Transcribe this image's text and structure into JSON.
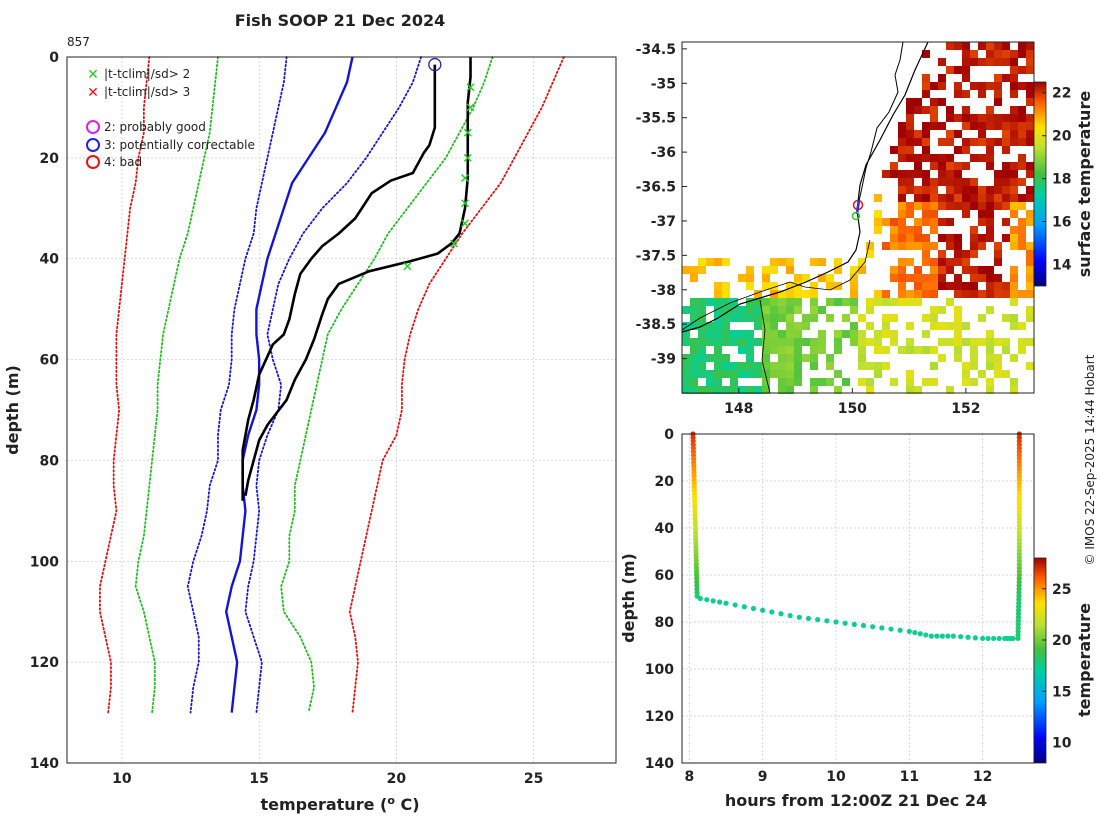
{
  "title": "Fish SOOP 21 Dec 2024",
  "profile_id": "857",
  "credit": "© IMOS 22-Sep-2025 14:44 Hobart",
  "legend": {
    "flag_items": [
      {
        "marker": "x",
        "color": "#22cc22",
        "label": "|t-tclim|/sd> 2"
      },
      {
        "marker": "x",
        "color": "#ee1111",
        "label": "|t-tclim|/sd> 3"
      }
    ],
    "qc_items": [
      {
        "marker": "o",
        "color": "#dd22dd",
        "label": "2: probably good"
      },
      {
        "marker": "o",
        "color": "#2222dd",
        "label": "3: potentially correctable"
      },
      {
        "marker": "o",
        "color": "#ee1111",
        "label": "4: bad"
      }
    ]
  },
  "chart_data": [
    {
      "type": "line",
      "name": "temperature-profile",
      "xlabel": "temperature (",
      "xlabel_sup": "o",
      "xlabel_tail": " C)",
      "ylabel": "depth (m)",
      "xlim": [
        8,
        28
      ],
      "ylim": [
        140,
        0
      ],
      "xticks": [
        10,
        15,
        20,
        25
      ],
      "yticks": [
        0,
        20,
        40,
        60,
        80,
        100,
        120,
        140
      ],
      "depth_levels": [
        0,
        5,
        10,
        15,
        20,
        25,
        30,
        35,
        40,
        45,
        50,
        55,
        60,
        65,
        70,
        75,
        80,
        85,
        90,
        95,
        100,
        105,
        110,
        115,
        120,
        125,
        130
      ],
      "climatology": [
        {
          "name": "clim-mean",
          "color": "#1515d0",
          "style": "solid",
          "values": [
            18.4,
            18.2,
            17.8,
            17.4,
            16.8,
            16.2,
            15.9,
            15.6,
            15.3,
            15.1,
            14.9,
            14.9,
            15.0,
            15.0,
            14.9,
            14.6,
            14.4,
            14.4,
            14.5,
            14.4,
            14.3,
            14.0,
            13.8,
            14.0,
            14.2,
            14.1,
            14.0
          ]
        },
        {
          "name": "clim-plus1sd",
          "color": "#1515d0",
          "style": "dotted",
          "values": [
            16.0,
            15.9,
            15.7,
            15.5,
            15.3,
            15.1,
            14.9,
            14.8,
            14.5,
            14.3,
            14.1,
            14.0,
            14.0,
            13.9,
            13.6,
            13.5,
            13.5,
            13.2,
            13.1,
            12.9,
            12.6,
            12.4,
            12.6,
            12.8,
            12.8,
            12.6,
            12.5
          ]
        },
        {
          "name": "clim-minus1sd",
          "color": "#1515d0",
          "style": "dotted",
          "values": [
            20.9,
            20.6,
            20.1,
            19.5,
            18.9,
            18.2,
            17.3,
            16.6,
            16.1,
            15.7,
            15.5,
            15.3,
            15.5,
            15.8,
            15.7,
            15.3,
            15.0,
            14.9,
            15.0,
            14.9,
            14.8,
            14.6,
            14.5,
            14.8,
            15.1,
            15.0,
            14.9
          ]
        },
        {
          "name": "clim-plus2sd",
          "color": "#22bb22",
          "style": "dotted",
          "values": [
            13.5,
            13.4,
            13.3,
            13.2,
            13.0,
            12.8,
            12.6,
            12.4,
            12.1,
            11.9,
            11.7,
            11.5,
            11.4,
            11.3,
            11.3,
            11.2,
            11.1,
            11.0,
            10.9,
            10.8,
            10.6,
            10.5,
            10.8,
            11.0,
            11.2,
            11.2,
            11.1
          ]
        },
        {
          "name": "clim-minus2sd",
          "color": "#22bb22",
          "style": "dotted",
          "values": [
            23.5,
            23.2,
            22.8,
            22.3,
            21.8,
            21.1,
            20.4,
            19.7,
            19.2,
            18.6,
            18.0,
            17.5,
            17.3,
            17.1,
            16.9,
            16.7,
            16.5,
            16.3,
            16.3,
            16.1,
            16.1,
            15.8,
            15.9,
            16.5,
            16.9,
            17.0,
            16.8
          ]
        },
        {
          "name": "clim-plus3sd",
          "color": "#dd1111",
          "style": "dotted",
          "values": [
            11.0,
            10.9,
            10.8,
            10.8,
            10.6,
            10.5,
            10.3,
            10.2,
            10.1,
            10.0,
            9.9,
            9.8,
            9.8,
            9.8,
            9.9,
            9.8,
            9.7,
            9.7,
            9.8,
            9.6,
            9.4,
            9.2,
            9.2,
            9.4,
            9.6,
            9.6,
            9.5
          ]
        },
        {
          "name": "clim-minus3sd",
          "color": "#dd1111",
          "style": "dotted",
          "values": [
            26.1,
            25.7,
            25.3,
            24.8,
            24.3,
            23.8,
            23.1,
            22.4,
            21.8,
            21.2,
            20.8,
            20.5,
            20.3,
            20.2,
            20.2,
            20.0,
            19.5,
            19.3,
            19.1,
            18.9,
            18.7,
            18.5,
            18.3,
            18.5,
            18.6,
            18.5,
            18.4
          ]
        }
      ],
      "observed_1": {
        "name": "observed-profile",
        "color": "#000000",
        "points": [
          [
            22.7,
            0
          ],
          [
            22.7,
            4
          ],
          [
            22.6,
            9
          ],
          [
            22.6,
            14
          ],
          [
            22.6,
            19
          ],
          [
            22.6,
            24
          ],
          [
            22.5,
            30
          ],
          [
            22.3,
            35
          ],
          [
            22.0,
            37
          ],
          [
            21.5,
            39
          ],
          [
            20.5,
            40.5
          ],
          [
            19.0,
            42.5
          ],
          [
            17.9,
            45
          ],
          [
            17.5,
            48
          ],
          [
            17.3,
            51
          ],
          [
            17.0,
            56
          ],
          [
            16.7,
            60
          ],
          [
            16.3,
            64
          ],
          [
            16.0,
            68
          ],
          [
            15.3,
            73
          ],
          [
            15.0,
            76
          ],
          [
            14.8,
            80
          ],
          [
            14.6,
            84
          ],
          [
            14.5,
            87
          ]
        ]
      },
      "observed_2": {
        "name": "reference-profile",
        "color": "#000000",
        "points": [
          [
            21.4,
            1.5
          ],
          [
            21.4,
            10
          ],
          [
            21.4,
            14
          ],
          [
            21.2,
            17.5
          ],
          [
            21.0,
            19
          ],
          [
            20.6,
            23
          ],
          [
            19.8,
            24.5
          ],
          [
            19.1,
            27
          ],
          [
            18.5,
            32
          ],
          [
            17.9,
            35
          ],
          [
            17.3,
            37.5
          ],
          [
            16.9,
            40
          ],
          [
            16.5,
            43
          ],
          [
            16.3,
            47
          ],
          [
            16.1,
            52
          ],
          [
            15.9,
            55
          ],
          [
            15.5,
            57
          ],
          [
            15.0,
            63
          ],
          [
            14.8,
            68
          ],
          [
            14.6,
            72
          ],
          [
            14.4,
            78
          ],
          [
            14.4,
            82
          ],
          [
            14.4,
            88
          ]
        ]
      },
      "green_flags": [
        [
          22.7,
          6
        ],
        [
          22.7,
          10
        ],
        [
          22.6,
          15
        ],
        [
          22.6,
          20
        ],
        [
          22.5,
          24
        ],
        [
          22.5,
          29
        ],
        [
          22.5,
          33
        ],
        [
          22.1,
          37
        ],
        [
          20.4,
          41.5
        ]
      ],
      "qc_point": [
        21.4,
        1.5
      ]
    },
    {
      "type": "heatmap",
      "name": "sst-map",
      "colorbar_label": "surface temperature",
      "colorbar_range": [
        13,
        22.5
      ],
      "colorbar_ticks": [
        14,
        16,
        18,
        20,
        22
      ],
      "xlim": [
        147,
        153.2
      ],
      "ylim": [
        -39.5,
        -34.4
      ],
      "xticks": [
        148,
        150,
        152
      ],
      "yticks": [
        -34.5,
        -35,
        -35.5,
        -36,
        -36.5,
        -37,
        -37.5,
        -38,
        -38.5,
        -39
      ]
    },
    {
      "type": "scatter",
      "name": "track-depth",
      "xlabel": "hours from 12:00Z 21 Dec 24",
      "ylabel": "depth (m)",
      "colorbar_label": "temperature",
      "colorbar_range": [
        8,
        28
      ],
      "colorbar_ticks": [
        10,
        15,
        20,
        25
      ],
      "xlim": [
        7.9,
        12.7
      ],
      "ylim": [
        140,
        0
      ],
      "xticks": [
        8,
        9,
        10,
        11,
        12
      ],
      "yticks": [
        0,
        20,
        40,
        60,
        80,
        100,
        120,
        140
      ],
      "descent_start": {
        "hour": 8.05,
        "depth_top": 0,
        "depth_bottom": 70
      },
      "bottom_track": [
        [
          8.15,
          70
        ],
        [
          8.5,
          72
        ],
        [
          9.0,
          75
        ],
        [
          9.5,
          78
        ],
        [
          10.0,
          80
        ],
        [
          10.5,
          82
        ],
        [
          11.0,
          84
        ],
        [
          11.3,
          86
        ],
        [
          11.6,
          86
        ],
        [
          12.0,
          87
        ],
        [
          12.3,
          87
        ],
        [
          12.45,
          87
        ]
      ],
      "ascent_end": {
        "hour": 12.5,
        "depth_top": 0,
        "depth_bottom": 87
      }
    }
  ]
}
